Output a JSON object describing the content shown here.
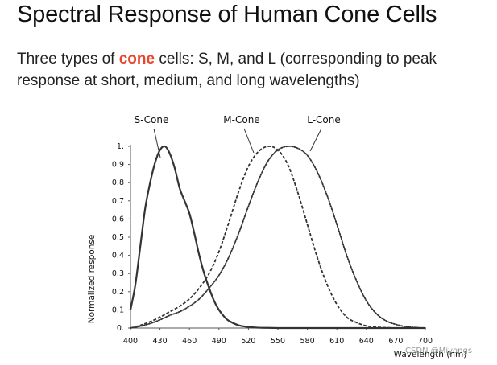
{
  "slide": {
    "title": "Spectral Response of Human Cone Cells",
    "subtitle_pre": "Three types of ",
    "subtitle_highlight": "cone",
    "subtitle_post": " cells: S, M, and L (corresponding to peak response at short, medium, and long wavelengths)",
    "highlight_color": "#e8452c"
  },
  "watermark": "CSDN @Miyongs",
  "chart_data": {
    "type": "line",
    "title": "",
    "xlabel": "Wavelength (nm)",
    "ylabel": "Normalized response",
    "xlim": [
      400,
      700
    ],
    "ylim": [
      0,
      1
    ],
    "x_ticks": [
      400,
      430,
      460,
      490,
      520,
      550,
      580,
      610,
      640,
      670,
      700
    ],
    "x_tick_labels": [
      "400",
      "430",
      "460",
      "490",
      "520",
      "550",
      "580",
      "610",
      "640",
      "670",
      "700"
    ],
    "y_ticks": [
      0,
      0.1,
      0.2,
      0.3,
      0.4,
      0.5,
      0.6,
      0.7,
      0.8,
      0.9,
      1.0
    ],
    "y_tick_labels": [
      "0.",
      "0.1",
      "0.2",
      "0.3",
      "0.4",
      "0.5",
      "0.6",
      "0.7",
      "0.8",
      "0.9",
      "1."
    ],
    "grid": false,
    "series": [
      {
        "name": "S-Cone",
        "style": "solid",
        "color": "#333333",
        "x": [
          400,
          405,
          410,
          415,
          420,
          425,
          430,
          435,
          440,
          445,
          450,
          455,
          460,
          465,
          470,
          475,
          480,
          485,
          490,
          495,
          500,
          510,
          520,
          530,
          540,
          550,
          560,
          580,
          600,
          650,
          700
        ],
        "y": [
          0.1,
          0.24,
          0.45,
          0.66,
          0.8,
          0.91,
          0.98,
          1.0,
          0.96,
          0.88,
          0.77,
          0.7,
          0.63,
          0.52,
          0.4,
          0.3,
          0.22,
          0.15,
          0.1,
          0.065,
          0.04,
          0.015,
          0.006,
          0.002,
          0.001,
          0.0,
          0.0,
          0.0,
          0.0,
          0.0,
          0.0
        ]
      },
      {
        "name": "M-Cone",
        "style": "dashed",
        "color": "#333333",
        "x": [
          400,
          410,
          420,
          430,
          440,
          450,
          460,
          470,
          480,
          490,
          500,
          510,
          520,
          530,
          540,
          550,
          560,
          570,
          580,
          590,
          600,
          610,
          620,
          630,
          640,
          650,
          660,
          670,
          680,
          690,
          700
        ],
        "y": [
          0.0,
          0.015,
          0.035,
          0.06,
          0.09,
          0.12,
          0.16,
          0.22,
          0.3,
          0.42,
          0.58,
          0.75,
          0.89,
          0.97,
          1.0,
          0.98,
          0.9,
          0.75,
          0.57,
          0.39,
          0.24,
          0.13,
          0.06,
          0.03,
          0.012,
          0.005,
          0.002,
          0.0,
          0.0,
          0.0,
          0.0
        ]
      },
      {
        "name": "L-Cone",
        "style": "dotted",
        "color": "#333333",
        "x": [
          400,
          410,
          420,
          430,
          440,
          450,
          460,
          470,
          480,
          490,
          500,
          510,
          520,
          530,
          540,
          550,
          560,
          570,
          580,
          590,
          600,
          610,
          620,
          630,
          640,
          650,
          660,
          670,
          680,
          690,
          700
        ],
        "y": [
          0.0,
          0.01,
          0.025,
          0.045,
          0.07,
          0.09,
          0.12,
          0.16,
          0.22,
          0.29,
          0.39,
          0.52,
          0.67,
          0.81,
          0.92,
          0.98,
          1.0,
          0.99,
          0.95,
          0.86,
          0.73,
          0.57,
          0.4,
          0.26,
          0.15,
          0.08,
          0.04,
          0.02,
          0.008,
          0.003,
          0.0
        ]
      }
    ]
  }
}
